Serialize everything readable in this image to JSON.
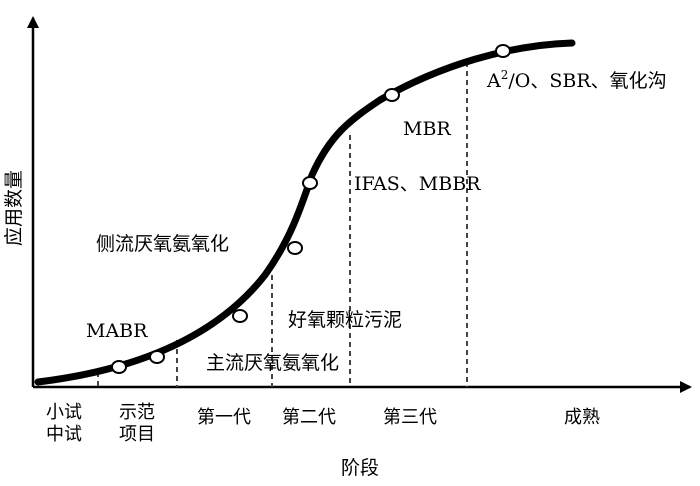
{
  "axes": {
    "y_title": "应用数量",
    "x_title": "阶段"
  },
  "stages": [
    {
      "lines": [
        "小试",
        "中试"
      ]
    },
    {
      "lines": [
        "示范",
        "项目"
      ]
    },
    {
      "lines": [
        "第一代"
      ]
    },
    {
      "lines": [
        "第二代"
      ]
    },
    {
      "lines": [
        "第三代"
      ]
    },
    {
      "lines": [
        "成熟"
      ]
    }
  ],
  "tech_labels": {
    "mabr": "MABR",
    "sidestream_anammox": "侧流厌氧氨氧化",
    "mainstream_anammox": "主流厌氧氨氧化",
    "aerobic_granular_sludge": "好氧颗粒污泥",
    "ifas_mbbr": "IFAS、MBBR",
    "mbr": "MBR",
    "a2o_prefix": "A",
    "a2o_sup": "2",
    "a2o_suffix": "/O、SBR、氧化沟"
  },
  "colors": {
    "curve": "#000000",
    "dashed": "#444444",
    "marker_fill": "#ffffff"
  }
}
